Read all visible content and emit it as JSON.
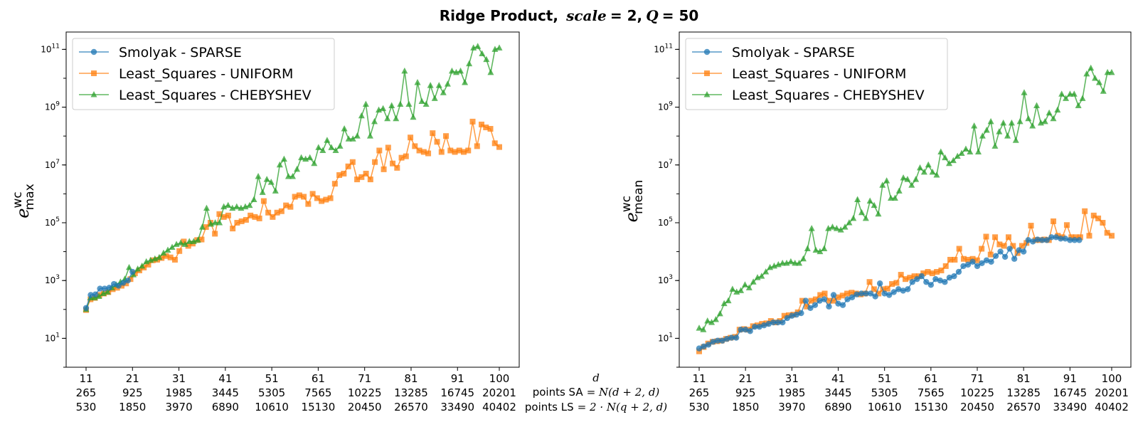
{
  "figure": {
    "title_prefix": "Ridge Product,",
    "title_scale": "scale",
    "title_eq1": " = 2,",
    "title_q": " Q",
    "title_eq2": " = 50",
    "center_label_d": "d",
    "center_label_sa_prefix": "points SA",
    "center_label_sa_formula": " = N(d + 2, d)",
    "center_label_ls_prefix": "points LS",
    "center_label_ls_formula": " = 2 · N(q + 2, d)"
  },
  "chart_data": [
    {
      "type": "line",
      "yscale": "log",
      "ylabel_main": "e",
      "ylabel_sup": "wc",
      "ylabel_sub": "max",
      "x_range": [
        11,
        100
      ],
      "ylim_log10": [
        0.0,
        11.6
      ],
      "y_ticks": [
        {
          "base": "10",
          "exp": "1",
          "log": 1
        },
        {
          "base": "10",
          "exp": "3",
          "log": 3
        },
        {
          "base": "10",
          "exp": "5",
          "log": 5
        },
        {
          "base": "10",
          "exp": "7",
          "log": 7
        },
        {
          "base": "10",
          "exp": "9",
          "log": 9
        },
        {
          "base": "10",
          "exp": "11",
          "log": 11
        }
      ],
      "x_ticks": [
        {
          "d": "11",
          "sa": "265",
          "ls": "530",
          "x": 11
        },
        {
          "d": "21",
          "sa": "925",
          "ls": "1850",
          "x": 21
        },
        {
          "d": "31",
          "sa": "1985",
          "ls": "3970",
          "x": 31
        },
        {
          "d": "41",
          "sa": "3445",
          "ls": "6890",
          "x": 41
        },
        {
          "d": "51",
          "sa": "5305",
          "ls": "10610",
          "x": 51
        },
        {
          "d": "61",
          "sa": "7565",
          "ls": "15130",
          "x": 61
        },
        {
          "d": "71",
          "sa": "10225",
          "ls": "20450",
          "x": 71
        },
        {
          "d": "81",
          "sa": "13285",
          "ls": "26570",
          "x": 81
        },
        {
          "d": "91",
          "sa": "16745",
          "ls": "33490",
          "x": 91
        },
        {
          "d": "100",
          "sa": "20201",
          "ls": "40402",
          "x": 100
        }
      ],
      "legend": {
        "position": "upper-left"
      },
      "series": [
        {
          "name": "Smolyak - SPARSE",
          "color": "#1f77b4",
          "marker": "circle",
          "x_start": 11,
          "x_end": 21,
          "log_values": [
            2.05,
            2.5,
            2.52,
            2.72,
            2.72,
            2.75,
            2.88,
            2.82,
            2.92,
            3.0,
            3.3
          ]
        },
        {
          "name": "Least_Squares - UNIFORM",
          "color": "#ff7f0e",
          "marker": "square",
          "x_start": 11,
          "x_end": 100,
          "log_values": [
            1.98,
            2.35,
            2.4,
            2.5,
            2.55,
            2.6,
            2.7,
            2.75,
            2.82,
            2.9,
            3.05,
            3.25,
            3.35,
            3.45,
            3.55,
            3.7,
            3.72,
            3.78,
            3.85,
            3.8,
            3.72,
            4.02,
            4.35,
            4.2,
            4.28,
            4.4,
            4.42,
            4.85,
            5.0,
            4.62,
            5.3,
            5.2,
            5.25,
            4.8,
            5.0,
            5.05,
            5.1,
            5.25,
            5.2,
            5.15,
            5.75,
            5.35,
            5.2,
            5.35,
            5.4,
            5.6,
            5.55,
            5.9,
            5.95,
            5.9,
            5.65,
            6.0,
            5.85,
            5.75,
            5.8,
            5.85,
            6.35,
            6.65,
            6.7,
            6.95,
            7.1,
            6.5,
            6.58,
            6.7,
            6.5,
            7.1,
            7.5,
            6.85,
            7.6,
            7.05,
            6.9,
            7.25,
            7.3,
            7.95,
            7.65,
            7.5,
            7.45,
            7.4,
            8.1,
            7.8,
            7.45,
            8.0,
            7.5,
            7.45,
            7.5,
            7.45,
            7.5,
            8.5,
            7.65,
            8.4,
            8.3,
            8.25,
            7.75,
            7.62
          ]
        },
        {
          "name": "Least_Squares - CHEBYSHEV",
          "color": "#2ca02c",
          "marker": "triangle",
          "x_start": 11,
          "x_end": 100,
          "log_values": [
            2.0,
            2.4,
            2.4,
            2.45,
            2.55,
            2.6,
            2.75,
            2.85,
            2.95,
            3.05,
            3.45,
            3.2,
            3.4,
            3.5,
            3.65,
            3.7,
            3.75,
            3.8,
            3.95,
            4.05,
            4.15,
            4.25,
            4.3,
            4.25,
            4.35,
            4.35,
            4.4,
            4.85,
            5.5,
            4.95,
            5.0,
            5.0,
            5.55,
            5.6,
            5.5,
            5.55,
            5.5,
            5.55,
            5.6,
            5.8,
            6.6,
            6.05,
            6.5,
            6.4,
            6.1,
            7.0,
            7.2,
            6.6,
            6.6,
            6.85,
            7.25,
            7.2,
            7.25,
            7.05,
            7.6,
            7.5,
            7.85,
            7.6,
            7.5,
            7.65,
            8.25,
            7.9,
            7.9,
            8.0,
            8.7,
            9.1,
            8.0,
            8.5,
            8.9,
            8.95,
            8.6,
            9.05,
            8.6,
            9.1,
            10.25,
            9.1,
            8.65,
            9.85,
            9.2,
            9.1,
            9.75,
            9.3,
            9.75,
            9.5,
            9.8,
            10.25,
            10.2,
            10.25,
            9.85,
            10.5,
            11.05,
            11.1,
            10.85,
            10.65,
            10.2,
            11.0,
            11.05
          ]
        }
      ]
    },
    {
      "type": "line",
      "yscale": "log",
      "ylabel_main": "e",
      "ylabel_sup": "wc",
      "ylabel_sub": "mean",
      "x_range": [
        11,
        100
      ],
      "ylim_log10": [
        0.0,
        11.6
      ],
      "y_ticks": [
        {
          "base": "10",
          "exp": "1",
          "log": 1
        },
        {
          "base": "10",
          "exp": "3",
          "log": 3
        },
        {
          "base": "10",
          "exp": "5",
          "log": 5
        },
        {
          "base": "10",
          "exp": "7",
          "log": 7
        },
        {
          "base": "10",
          "exp": "9",
          "log": 9
        },
        {
          "base": "10",
          "exp": "11",
          "log": 11
        }
      ],
      "x_ticks": [
        {
          "d": "11",
          "sa": "265",
          "ls": "530",
          "x": 11
        },
        {
          "d": "21",
          "sa": "925",
          "ls": "1850",
          "x": 21
        },
        {
          "d": "31",
          "sa": "1985",
          "ls": "3970",
          "x": 31
        },
        {
          "d": "41",
          "sa": "3445",
          "ls": "6890",
          "x": 41
        },
        {
          "d": "51",
          "sa": "5305",
          "ls": "10610",
          "x": 51
        },
        {
          "d": "61",
          "sa": "7565",
          "ls": "15130",
          "x": 61
        },
        {
          "d": "71",
          "sa": "10225",
          "ls": "20450",
          "x": 71
        },
        {
          "d": "81",
          "sa": "13285",
          "ls": "26570",
          "x": 81
        },
        {
          "d": "91",
          "sa": "16745",
          "ls": "33490",
          "x": 91
        },
        {
          "d": "100",
          "sa": "20201",
          "ls": "40402",
          "x": 100
        }
      ],
      "legend": {
        "position": "upper-left"
      },
      "series": [
        {
          "name": "Smolyak - SPARSE",
          "color": "#1f77b4",
          "marker": "circle",
          "x_start": 11,
          "x_end": 93,
          "log_values": [
            0.65,
            0.72,
            0.78,
            0.88,
            0.92,
            0.92,
            0.98,
            1.02,
            1.02,
            1.3,
            1.3,
            1.25,
            1.4,
            1.4,
            1.45,
            1.5,
            1.55,
            1.55,
            1.55,
            1.7,
            1.78,
            1.82,
            1.87,
            2.3,
            2.05,
            2.15,
            2.3,
            2.35,
            2.1,
            2.5,
            2.2,
            2.15,
            2.35,
            2.42,
            2.52,
            2.55,
            2.55,
            2.55,
            2.45,
            2.9,
            2.55,
            2.5,
            2.6,
            2.7,
            2.65,
            2.7,
            2.95,
            3.05,
            3.15,
            2.95,
            2.85,
            3.05,
            3.0,
            2.95,
            3.1,
            3.15,
            3.3,
            3.5,
            3.55,
            3.65,
            3.5,
            3.6,
            3.7,
            3.65,
            3.85,
            4.0,
            3.82,
            4.1,
            3.75,
            4.05,
            4.0,
            4.4,
            4.35,
            4.42,
            4.4,
            4.4,
            4.5,
            4.5,
            4.45,
            4.45,
            4.4,
            4.4,
            4.4
          ]
        },
        {
          "name": "Least_Squares - UNIFORM",
          "color": "#ff7f0e",
          "marker": "square",
          "x_start": 11,
          "x_end": 100,
          "log_values": [
            0.55,
            0.7,
            0.82,
            0.88,
            0.9,
            0.92,
            0.98,
            1.02,
            1.05,
            1.3,
            1.32,
            1.3,
            1.42,
            1.45,
            1.5,
            1.52,
            1.6,
            1.55,
            1.6,
            1.78,
            1.8,
            1.82,
            1.9,
            2.3,
            2.1,
            2.3,
            2.35,
            2.5,
            2.55,
            2.3,
            2.3,
            2.42,
            2.48,
            2.55,
            2.58,
            2.55,
            2.52,
            2.55,
            2.95,
            2.7,
            2.55,
            2.7,
            2.72,
            2.88,
            2.92,
            3.2,
            3.05,
            3.1,
            3.15,
            3.15,
            3.25,
            3.3,
            3.25,
            3.3,
            3.35,
            3.5,
            3.72,
            3.72,
            4.1,
            3.75,
            3.72,
            3.75,
            3.7,
            4.1,
            4.52,
            3.9,
            4.5,
            4.25,
            4.2,
            4.5,
            4.2,
            3.95,
            4.2,
            4.3,
            4.9,
            4.4,
            4.4,
            4.42,
            4.4,
            5.05,
            4.55,
            4.5,
            4.92,
            4.5,
            4.5,
            4.5,
            5.4,
            4.55,
            5.25,
            5.15,
            5.0,
            4.65,
            4.55
          ]
        },
        {
          "name": "Least_Squares - CHEBYSHEV",
          "color": "#2ca02c",
          "marker": "triangle",
          "x_start": 11,
          "x_end": 100,
          "log_values": [
            1.35,
            1.3,
            1.6,
            1.55,
            1.65,
            1.85,
            2.2,
            2.3,
            2.7,
            2.6,
            2.65,
            2.85,
            2.75,
            2.95,
            3.1,
            3.15,
            3.3,
            3.45,
            3.5,
            3.55,
            3.6,
            3.6,
            3.65,
            3.6,
            3.6,
            3.75,
            4.1,
            4.8,
            4.05,
            4.0,
            4.1,
            4.8,
            4.85,
            4.8,
            4.75,
            4.85,
            5.0,
            5.15,
            5.8,
            5.35,
            5.15,
            5.75,
            5.6,
            5.3,
            6.3,
            6.45,
            5.85,
            5.85,
            6.1,
            6.55,
            6.5,
            6.3,
            6.5,
            6.9,
            6.75,
            7.0,
            6.75,
            6.65,
            7.45,
            7.25,
            7.05,
            7.15,
            7.3,
            7.4,
            7.55,
            7.45,
            8.35,
            7.45,
            8.0,
            8.2,
            8.5,
            7.65,
            8.15,
            8.45,
            8.0,
            8.45,
            7.85,
            8.5,
            9.5,
            8.6,
            8.35,
            9.05,
            8.45,
            8.5,
            8.8,
            8.6,
            8.9,
            9.45,
            9.3,
            9.45,
            9.45,
            9.05,
            9.3,
            10.15,
            10.35,
            10.0,
            9.85,
            9.55,
            10.2,
            10.2
          ]
        }
      ]
    }
  ]
}
